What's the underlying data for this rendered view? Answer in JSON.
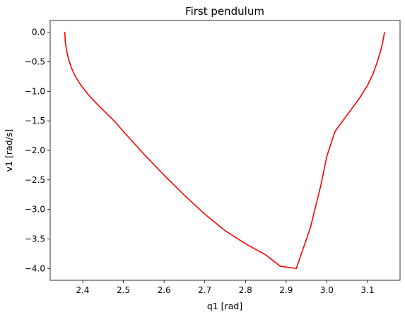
{
  "chart_data": {
    "type": "line",
    "title": "First pendulum",
    "xlabel": "q1 [rad]",
    "ylabel": "v1 [rad/s]",
    "xlim": [
      2.32,
      3.18
    ],
    "ylim": [
      -4.2,
      0.2
    ],
    "xticks": [
      2.4,
      2.5,
      2.6,
      2.7,
      2.8,
      2.9,
      3.0,
      3.1
    ],
    "xtick_labels": [
      "2.4",
      "2.5",
      "2.6",
      "2.7",
      "2.8",
      "2.9",
      "3.0",
      "3.1"
    ],
    "yticks": [
      0.0,
      -0.5,
      -1.0,
      -1.5,
      -2.0,
      -2.5,
      -3.0,
      -3.5,
      -4.0
    ],
    "ytick_labels": [
      "0.0",
      "−0.5",
      "−1.0",
      "−1.5",
      "−2.0",
      "−2.5",
      "−3.0",
      "−3.5",
      "−4.0"
    ],
    "grid": false,
    "series": [
      {
        "color": "#ff0000",
        "x": [
          2.356,
          2.357,
          2.36,
          2.365,
          2.372,
          2.382,
          2.396,
          2.413,
          2.433,
          2.455,
          2.48,
          2.5,
          2.55,
          2.6,
          2.65,
          2.7,
          2.75,
          2.8,
          2.85,
          2.885,
          2.925,
          2.96,
          2.985,
          3.0,
          3.02,
          3.05,
          3.08,
          3.1,
          3.115,
          3.125,
          3.132,
          3.137,
          3.14,
          3.1416
        ],
        "y": [
          0.0,
          -0.15,
          -0.3,
          -0.45,
          -0.6,
          -0.75,
          -0.9,
          -1.05,
          -1.2,
          -1.35,
          -1.52,
          -1.68,
          -2.06,
          -2.42,
          -2.76,
          -3.08,
          -3.36,
          -3.58,
          -3.77,
          -3.96,
          -4.0,
          -3.3,
          -2.6,
          -2.1,
          -1.68,
          -1.4,
          -1.12,
          -0.9,
          -0.68,
          -0.48,
          -0.32,
          -0.18,
          -0.07,
          0.0
        ]
      }
    ]
  }
}
